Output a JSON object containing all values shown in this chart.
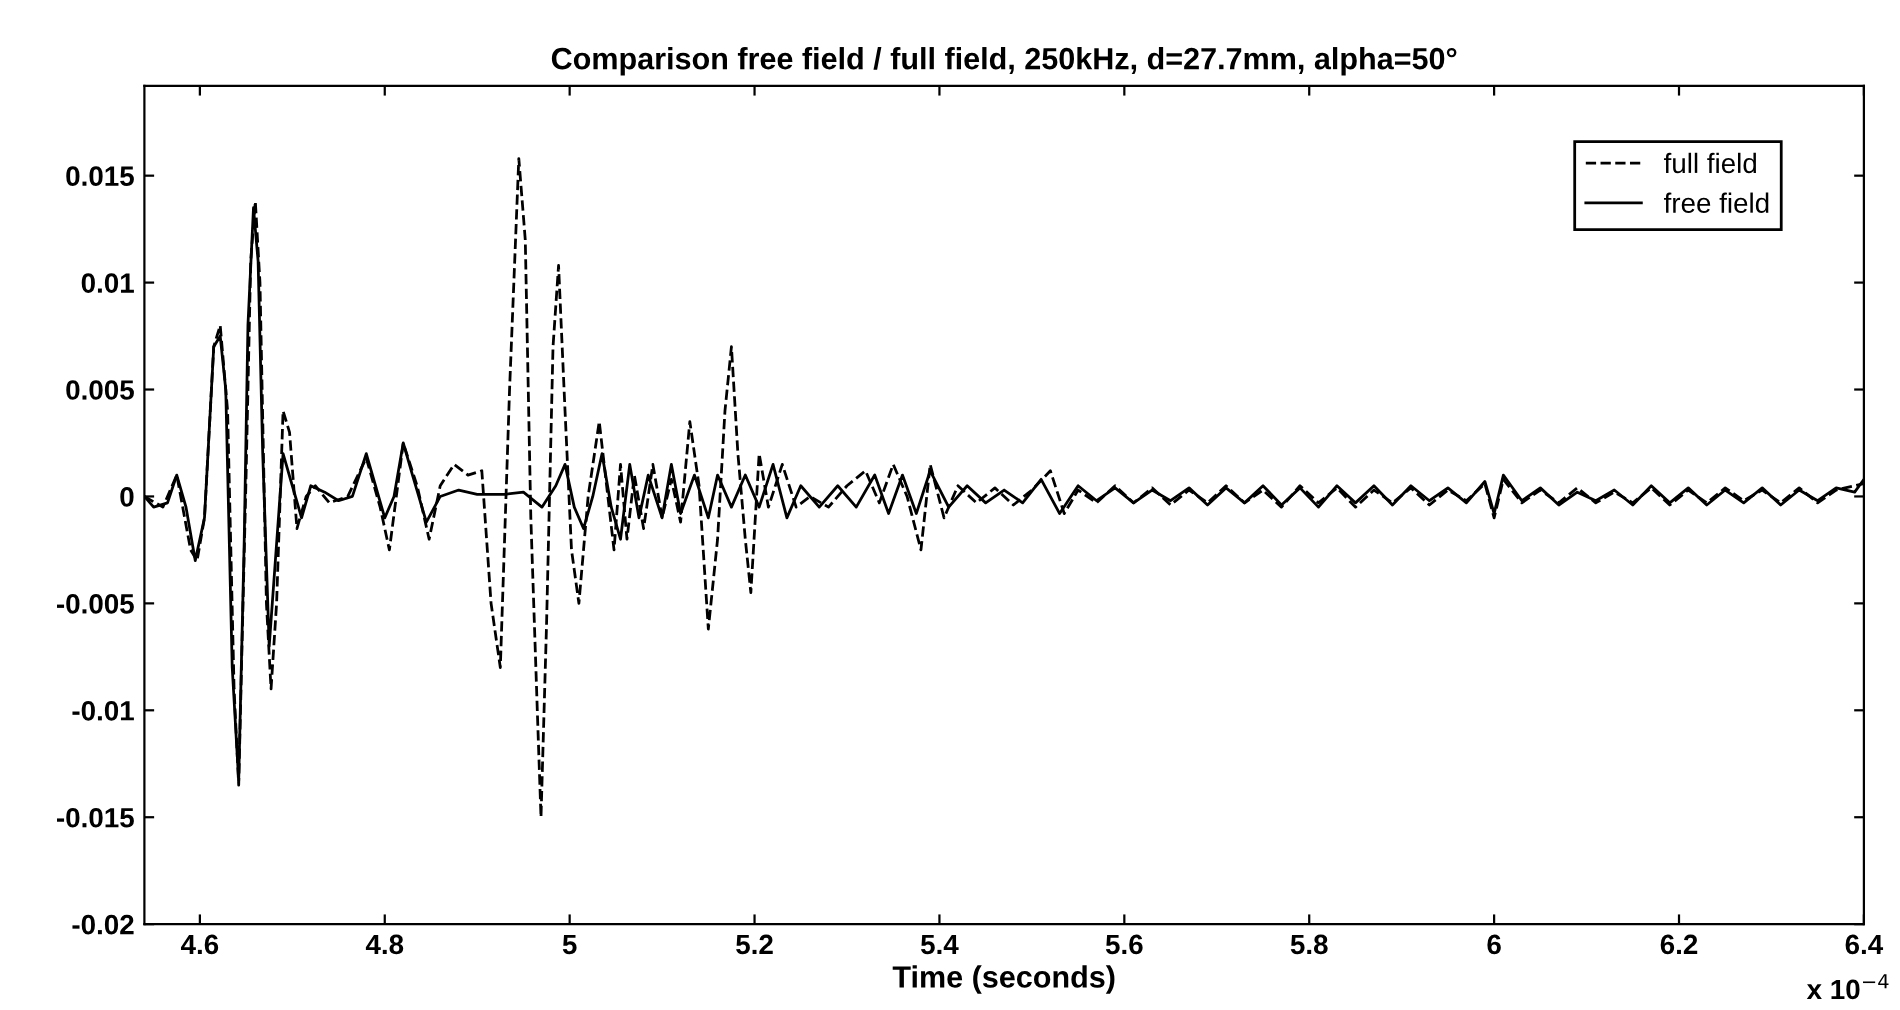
{
  "chart_data": {
    "type": "line",
    "title": "Comparison free field / full field, 250kHz, d=27.7mm, alpha=50°",
    "xlabel": "Time (seconds)",
    "annotations": [
      "x 10$^{−4}$"
    ],
    "xlim": [
      4.54,
      6.4
    ],
    "ylim": [
      -0.02,
      0.0192
    ],
    "xticks": [
      4.6,
      4.8,
      5,
      5.2,
      5.4,
      5.6,
      5.8,
      6,
      6.2,
      6.4
    ],
    "yticks": [
      -0.02,
      -0.015,
      -0.01,
      -0.005,
      0,
      0.005,
      0.01,
      0.015
    ],
    "grid": false,
    "legend": "top right",
    "marker": "none",
    "series": [
      {
        "name": "full field",
        "color": "#000000",
        "line_style": "dashed",
        "x": [
          4.54,
          4.56,
          4.575,
          4.59,
          4.597,
          4.605,
          4.615,
          4.622,
          4.63,
          4.637,
          4.642,
          4.65,
          4.655,
          4.66,
          4.665,
          4.672,
          4.677,
          4.683,
          4.69,
          4.697,
          4.705,
          4.715,
          4.725,
          4.74,
          4.76,
          4.78,
          4.795,
          4.805,
          4.82,
          4.835,
          4.848,
          4.86,
          4.875,
          4.89,
          4.905,
          4.915,
          4.925,
          4.935,
          4.945,
          4.952,
          4.958,
          4.965,
          4.969,
          4.975,
          4.982,
          4.988,
          4.995,
          5.002,
          5.01,
          5.02,
          5.032,
          5.04,
          5.048,
          5.055,
          5.062,
          5.07,
          5.08,
          5.09,
          5.1,
          5.11,
          5.12,
          5.13,
          5.14,
          5.15,
          5.16,
          5.168,
          5.175,
          5.182,
          5.19,
          5.196,
          5.205,
          5.215,
          5.23,
          5.245,
          5.26,
          5.28,
          5.3,
          5.32,
          5.335,
          5.35,
          5.365,
          5.38,
          5.39,
          5.405,
          5.42,
          5.44,
          5.46,
          5.48,
          5.5,
          5.52,
          5.535,
          5.55,
          5.57,
          5.59,
          5.61,
          5.63,
          5.65,
          5.67,
          5.69,
          5.71,
          5.73,
          5.75,
          5.77,
          5.79,
          5.81,
          5.83,
          5.85,
          5.87,
          5.89,
          5.91,
          5.93,
          5.95,
          5.97,
          5.99,
          6.0,
          6.01,
          6.03,
          6.05,
          6.07,
          6.09,
          6.11,
          6.13,
          6.15,
          6.17,
          6.19,
          6.21,
          6.23,
          6.25,
          6.27,
          6.29,
          6.31,
          6.33,
          6.35,
          6.37,
          6.39,
          6.4
        ],
        "values": [
          0,
          -0.0005,
          0.001,
          -0.0025,
          -0.003,
          -0.001,
          0.007,
          0.008,
          0.004,
          -0.009,
          -0.0135,
          0.001,
          0.011,
          0.0138,
          0.01,
          -0.005,
          -0.009,
          -0.005,
          0.004,
          0.003,
          -0.0015,
          0,
          0.0005,
          -0.0003,
          0,
          0.0018,
          -0.0005,
          -0.0025,
          0.0025,
          0.0005,
          -0.002,
          0.0005,
          0.0015,
          0.001,
          0.0012,
          -0.005,
          -0.008,
          0.005,
          0.0158,
          0.012,
          -0.001,
          -0.01,
          -0.015,
          -0.006,
          0.007,
          0.0108,
          0.004,
          -0.0025,
          -0.005,
          0,
          0.0035,
          0.0005,
          -0.0025,
          0.0015,
          -0.002,
          0.001,
          -0.0015,
          0.0015,
          -0.001,
          0.0008,
          -0.0012,
          0.0035,
          0.0005,
          -0.0062,
          -0.002,
          0.004,
          0.007,
          0.002,
          -0.002,
          -0.0045,
          0.002,
          -0.0005,
          0.0015,
          -0.0005,
          0,
          -0.0005,
          0.0005,
          0.0012,
          -0.0003,
          0.0015,
          0,
          -0.0025,
          0.0015,
          -0.001,
          0.0005,
          -0.0003,
          0.0004,
          -0.0004,
          0.0003,
          0.0012,
          -0.0008,
          0.0003,
          -0.0003,
          0.0005,
          -0.0003,
          0.0004,
          -0.0004,
          0.0003,
          -0.0003,
          0.0005,
          -0.0003,
          0.0003,
          -0.0005,
          0.0005,
          -0.0003,
          0.0004,
          -0.0005,
          0.0003,
          -0.0003,
          0.0004,
          -0.0004,
          0.0003,
          -0.0002,
          0.0006,
          -0.001,
          0.0008,
          -0.0003,
          0.0003,
          -0.0003,
          0.0004,
          -0.0003,
          0.0002,
          -0.0003,
          0.0004,
          -0.0004,
          0.0003,
          -0.0003,
          0.0004,
          -0.0002,
          0.0003,
          -0.0003,
          0.0004,
          -0.0003,
          0.0003,
          0.0005,
          0.0006
        ]
      },
      {
        "name": "free field",
        "color": "#000000",
        "line_style": "solid",
        "x": [
          4.54,
          4.55,
          4.565,
          4.575,
          4.585,
          4.595,
          4.605,
          4.615,
          4.622,
          4.628,
          4.635,
          4.642,
          4.648,
          4.652,
          4.658,
          4.663,
          4.668,
          4.675,
          4.68,
          4.69,
          4.7,
          4.71,
          4.72,
          4.735,
          4.75,
          4.765,
          4.78,
          4.79,
          4.8,
          4.81,
          4.82,
          4.83,
          4.845,
          4.86,
          4.88,
          4.9,
          4.93,
          4.95,
          4.97,
          4.985,
          4.995,
          5.005,
          5.015,
          5.025,
          5.035,
          5.045,
          5.055,
          5.065,
          5.075,
          5.085,
          5.1,
          5.11,
          5.12,
          5.135,
          5.15,
          5.16,
          5.175,
          5.19,
          5.205,
          5.22,
          5.235,
          5.25,
          5.27,
          5.29,
          5.31,
          5.33,
          5.345,
          5.36,
          5.375,
          5.39,
          5.41,
          5.43,
          5.45,
          5.47,
          5.49,
          5.51,
          5.53,
          5.55,
          5.57,
          5.59,
          5.61,
          5.63,
          5.65,
          5.67,
          5.69,
          5.71,
          5.73,
          5.75,
          5.77,
          5.79,
          5.81,
          5.83,
          5.85,
          5.87,
          5.89,
          5.91,
          5.93,
          5.95,
          5.97,
          5.99,
          6.0,
          6.01,
          6.03,
          6.05,
          6.07,
          6.09,
          6.11,
          6.13,
          6.15,
          6.17,
          6.19,
          6.21,
          6.23,
          6.25,
          6.27,
          6.29,
          6.31,
          6.33,
          6.35,
          6.37,
          6.39,
          6.4
        ],
        "values": [
          0,
          -0.0005,
          -0.0003,
          0.001,
          -0.0005,
          -0.003,
          -0.001,
          0.007,
          0.0075,
          0.005,
          -0.008,
          -0.0133,
          -0.002,
          0.008,
          0.0135,
          0.011,
          0.002,
          -0.007,
          -0.004,
          0.002,
          0.0005,
          -0.001,
          0.0005,
          0.0002,
          -0.0002,
          0,
          0.002,
          0.0005,
          -0.001,
          0,
          0.0025,
          0.001,
          -0.0012,
          0,
          0.0003,
          0.0001,
          0.0001,
          0.0002,
          -0.0005,
          0.0005,
          0.0015,
          -0.0005,
          -0.0015,
          0,
          0.002,
          -0.0005,
          -0.002,
          0.0015,
          -0.001,
          0.001,
          -0.001,
          0.0015,
          -0.0008,
          0.001,
          -0.001,
          0.001,
          -0.0005,
          0.001,
          -0.0005,
          0.0015,
          -0.001,
          0.0005,
          -0.0005,
          0.0005,
          -0.0005,
          0.001,
          -0.0008,
          0.001,
          -0.0008,
          0.0012,
          -0.0005,
          0.0005,
          -0.0003,
          0.0003,
          -0.0003,
          0.0008,
          -0.0008,
          0.0005,
          -0.0002,
          0.0004,
          -0.0003,
          0.0003,
          -0.0002,
          0.0004,
          -0.0004,
          0.0004,
          -0.0003,
          0.0005,
          -0.0004,
          0.0004,
          -0.0005,
          0.0005,
          -0.0003,
          0.0005,
          -0.0004,
          0.0005,
          -0.0002,
          0.0004,
          -0.0003,
          0.0007,
          -0.0008,
          0.001,
          -0.0002,
          0.0004,
          -0.0004,
          0.0002,
          -0.0002,
          0.0003,
          -0.0004,
          0.0005,
          -0.0003,
          0.0004,
          -0.0004,
          0.0003,
          -0.0003,
          0.0004,
          -0.0004,
          0.0003,
          -0.0002,
          0.0004,
          0.0002,
          0.0008
        ]
      }
    ]
  }
}
